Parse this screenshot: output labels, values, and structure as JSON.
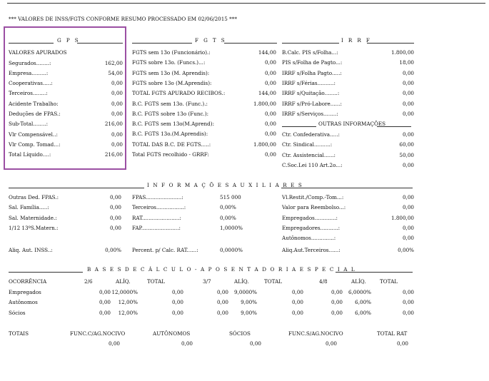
{
  "page_header": "*** VALORES DE INSS/FGTS CONFORME RESUMO PROCESSADO EM 02/06/2015 ***",
  "gps": {
    "title": "G P S",
    "subtitle": "VALORES APURADOS",
    "rows": [
      {
        "label": "Segurados........:",
        "value": "162,00"
      },
      {
        "label": "Empresa.........:",
        "value": "54,00"
      },
      {
        "label": "Cooperativas.....:",
        "value": "0,00"
      },
      {
        "label": "Terceiros........:",
        "value": "0,00"
      },
      {
        "label": "Acidente Trabalho:",
        "value": "0,00"
      },
      {
        "label": "Deduções de FPAS.:",
        "value": "0,00"
      },
      {
        "label": "Sub-Total........:",
        "value": "216,00"
      },
      {
        "label": "Vlr Compensável..:",
        "value": "0,00"
      },
      {
        "label": "Vlr Comp. Tomad...:",
        "value": "0,00"
      },
      {
        "label": "Total Líquido....:",
        "value": "216,00"
      }
    ]
  },
  "fgts": {
    "title": "F G T S",
    "rows": [
      {
        "label": "FGTS sem 13o (Funcionário).:",
        "value": "144,00"
      },
      {
        "label": "FGTS sobre 13o. (Funcs.)...:",
        "value": "0,00"
      },
      {
        "label": "FGTS sem 13o (M. Aprendis):",
        "value": "0,00"
      },
      {
        "label": "FGTS sobre 13o (M.Aprendis):",
        "value": "0,00"
      },
      {
        "label": "TOTAL FGTS APURADO RECIBOS.:",
        "value": "144,00"
      },
      {
        "label": "B.C. FGTS sem 13o. (Func.).:",
        "value": "1.800,00"
      },
      {
        "label": "B.C. FGTS sobre 13o (Func.):",
        "value": "0,00"
      },
      {
        "label": "B.C. FGTS sem 13o(M.Aprend):",
        "value": "0,00"
      },
      {
        "label": "B.C. FGTS 13o.(M.Aprendis):",
        "value": "0,00"
      },
      {
        "label": "TOTAL DAS B.C. DE FGTS.....:",
        "value": "1.800,00"
      },
      {
        "label": "Total FGTS recolhido - GRRF:",
        "value": "0,00"
      }
    ]
  },
  "irrf": {
    "title": "I R R F",
    "rows": [
      {
        "label": "B.Calc. PIS s/Folha...:",
        "value": "1.800,00"
      },
      {
        "label": "PIS s/Folha de Pagto...:",
        "value": "18,00"
      },
      {
        "label": "IRRF s/Folha Pagto.....:",
        "value": "0,00"
      },
      {
        "label": "IRRF s/Férias..........:",
        "value": "0,00"
      },
      {
        "label": "IRRF s/Quitação........:",
        "value": "0,00"
      },
      {
        "label": "IRRF s/Pró-Labore......:",
        "value": "0,00"
      },
      {
        "label": "IRRF s/Serviços........:",
        "value": "0,00"
      }
    ],
    "outras_title": "OUTRAS INFORMAÇÕES",
    "outras_rows": [
      {
        "label": "Ctr. Confederativa.....:",
        "value": "0,00"
      },
      {
        "label": "Ctr. Sindical..........:",
        "value": "60,00"
      },
      {
        "label": "Ctr. Assistencial......:",
        "value": "50,00"
      },
      {
        "label": "C.Soc.Lei 110 Art.2o...:",
        "value": "0,00"
      }
    ]
  },
  "aux": {
    "title": "I N F O R M A Ç Õ E S   A U X I L I A R E S",
    "col1": [
      {
        "label": "Outras Ded. FPAS.:",
        "value": "0,00"
      },
      {
        "label": "Sal. Família.....:",
        "value": "0,00"
      },
      {
        "label": "Sal. Maternidade.:",
        "value": "0,00"
      },
      {
        "label": "1/12 13ºS.Matern.:",
        "value": "0,00"
      }
    ],
    "col2": [
      {
        "label": "FPAS......................:",
        "value": "515 000"
      },
      {
        "label": "Terceiros.................:",
        "value": "0,00%"
      },
      {
        "label": "RAT.......................:",
        "value": "0,00%"
      },
      {
        "label": "FAP.......................:",
        "value": "1,0000%"
      }
    ],
    "col3": [
      {
        "label": "Vl.Restit./Comp.-Tom...:",
        "value": "0,00"
      },
      {
        "label": "Valor para Reembolso...:",
        "value": "0,00"
      },
      {
        "label": "Empregados.............:",
        "value": "1.800,00"
      },
      {
        "label": "Empregadores...........:",
        "value": "0,00"
      },
      {
        "label": "Autônomos..............:",
        "value": "0,00"
      }
    ],
    "aliq_inss_label": "Aliq. Aut. INSS..:",
    "aliq_inss_value": "0,00%",
    "percent_rat_label": "Percent. p/ Calc. RAT......:",
    "percent_rat_value": "0,0000%",
    "aliq_terc_label": "Aliq.Aut.Terceiros......:",
    "aliq_terc_value": "0,00%"
  },
  "bases": {
    "title": "B A S E S   D E   C Á L C U L O  -  A P O S E N T A D O R I A   E S P E C I A L",
    "headers": [
      "OCORRÊNCIA",
      "2/6",
      "ALÍQ.",
      "TOTAL",
      "3/7",
      "ALÍQ.",
      "TOTAL",
      "4/8",
      "ALÍQ.",
      "TOTAL"
    ],
    "rows": [
      {
        "label": "Empregados",
        "v": [
          "0,00",
          "12,0000%",
          "0,00",
          "0,00",
          "9,0000%",
          "0,00",
          "0,00",
          "6,0000%",
          "0,00"
        ]
      },
      {
        "label": "Autônomos",
        "v": [
          "0,00",
          "12,00%",
          "0,00",
          "0,00",
          "9,00%",
          "0,00",
          "0,00",
          "6,00%",
          "0,00"
        ]
      },
      {
        "label": "Sócios",
        "v": [
          "0,00",
          "12,00%",
          "0,00",
          "0,00",
          "9,00%",
          "0,00",
          "0,00",
          "6,00%",
          "0,00"
        ]
      }
    ]
  },
  "totais": {
    "headers": [
      "TOTAIS",
      "FUNC.C/AG.NOCIVO",
      "AUTÔNOMOS",
      "SÓCIOS",
      "FUNC.S/AG.NOCIVO",
      "TOTAL RAT"
    ],
    "values": [
      "0,00",
      "0,00",
      "0,00",
      "0,00",
      "0,00"
    ]
  },
  "colors": {
    "highlight_box": "#9b4fa3"
  }
}
